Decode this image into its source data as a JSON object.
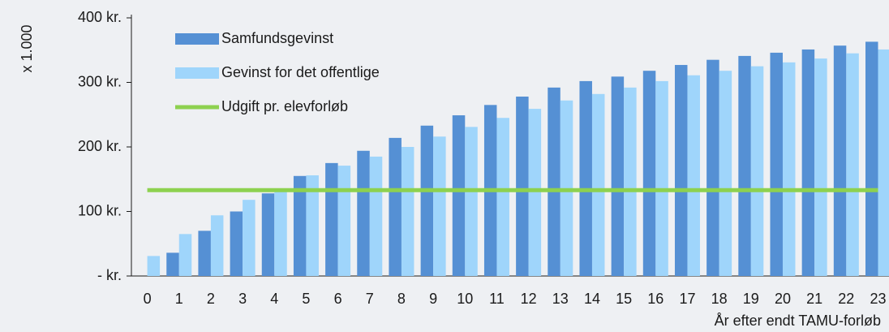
{
  "chart_data": {
    "type": "bar",
    "ylabel": "x 1.000",
    "xlabel": "År efter endt TAMU-forløb",
    "categories": [
      "0",
      "1",
      "2",
      "3",
      "4",
      "5",
      "6",
      "7",
      "8",
      "9",
      "10",
      "11",
      "12",
      "13",
      "14",
      "15",
      "16",
      "17",
      "18",
      "19",
      "20",
      "21",
      "22",
      "23"
    ],
    "series": [
      {
        "name": "Samfundsgevinst",
        "color": "#5590d4",
        "values": [
          0,
          36,
          70,
          100,
          128,
          155,
          175,
          194,
          214,
          233,
          249,
          265,
          278,
          292,
          302,
          309,
          318,
          327,
          335,
          341,
          346,
          351,
          357,
          363
        ]
      },
      {
        "name": "Gevinst for det offentlige",
        "color": "#9fd5fb",
        "values": [
          31,
          65,
          94,
          118,
          135,
          156,
          171,
          185,
          200,
          216,
          231,
          245,
          259,
          272,
          282,
          292,
          302,
          311,
          318,
          325,
          331,
          337,
          345,
          351
        ]
      },
      {
        "name": "Udgift pr. elevforløb",
        "color": "#8dd14f",
        "type": "line",
        "values": [
          133,
          133,
          133,
          133,
          133,
          133,
          133,
          133,
          133,
          133,
          133,
          133,
          133,
          133,
          133,
          133,
          133,
          133,
          133,
          133,
          133,
          133,
          133,
          133
        ]
      }
    ],
    "ylim": [
      0,
      400
    ],
    "yticks": [
      {
        "value": 0,
        "label": "-   kr."
      },
      {
        "value": 100,
        "label": "100 kr."
      },
      {
        "value": 200,
        "label": "200 kr."
      },
      {
        "value": 300,
        "label": "300 kr."
      },
      {
        "value": 400,
        "label": "400 kr."
      }
    ],
    "legend": "upper left"
  }
}
